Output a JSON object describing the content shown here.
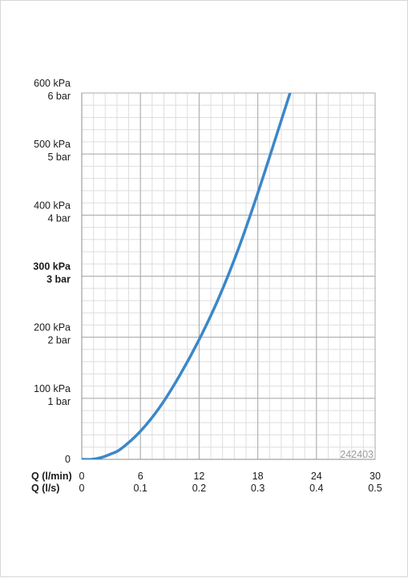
{
  "chart_data": {
    "type": "line",
    "title": "",
    "code": "242403",
    "x_axis": {
      "name": "Q (l/min)",
      "secondary_name": "Q (l/s)",
      "ticks": [
        0,
        6,
        12,
        18,
        24,
        30
      ],
      "tick_labels": [
        "0",
        "6",
        "12",
        "18",
        "24",
        "30"
      ],
      "secondary_tick_labels": [
        "0",
        "0.1",
        "0.2",
        "0.3",
        "0.4",
        "0.5"
      ],
      "range": [
        0,
        30
      ],
      "minor_step": 1.2
    },
    "y_axis": {
      "unit": "kPa",
      "ticks": [
        0,
        100,
        200,
        300,
        400,
        500,
        600
      ],
      "tick_labels_kpa": [
        "0",
        "100 kPa",
        "200 kPa",
        "300 kPa",
        "400 kPa",
        "500 kPa",
        "600 kPa"
      ],
      "tick_labels_bar": [
        "",
        "1 bar",
        "2 bar",
        "3 bar",
        "4 bar",
        "5 bar",
        "6 bar"
      ],
      "bold_tick": 300,
      "range": [
        0,
        600
      ],
      "minor_step": 20
    },
    "grid": true,
    "colors": {
      "line": "#3b87c9",
      "major_grid": "#a9a9a9",
      "minor_grid": "#dedede",
      "code": "#9a9a9a"
    },
    "series": [
      {
        "x": [
          0,
          1,
          2,
          3,
          4,
          6,
          8,
          10,
          12,
          14,
          16,
          18,
          20,
          21.3
        ],
        "y": [
          0,
          0,
          3,
          9,
          17,
          46,
          86,
          137,
          196,
          264,
          344,
          436,
          535,
          600
        ]
      }
    ]
  }
}
